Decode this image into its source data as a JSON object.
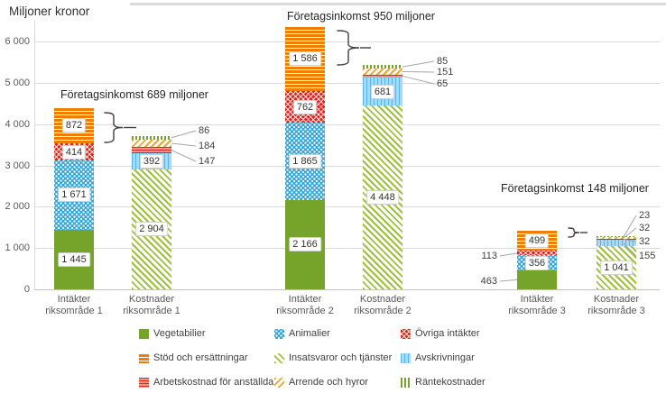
{
  "chart_data": {
    "type": "bar",
    "stacked": true,
    "title": "Miljoner kronor",
    "ylabel": "Miljoner kronor",
    "ylim": [
      0,
      6500
    ],
    "grid": true,
    "yticks": [
      "0",
      "1 000",
      "2 000",
      "3 000",
      "4 000",
      "5 000",
      "6 000"
    ],
    "annotations": [
      {
        "text": "Företagsinkomst 689 miljoner"
      },
      {
        "text": "Företagsinkomst 950 miljoner"
      },
      {
        "text": "Företagsinkomst 148 miljoner"
      }
    ],
    "groups": [
      {
        "label_lines": [
          "Intäkter",
          "riksområde 1"
        ],
        "segments": [
          {
            "series": "vegetabilier",
            "value": 1445,
            "label": "1 445",
            "placement": "inside"
          },
          {
            "series": "animalier",
            "value": 1671,
            "label": "1 671",
            "placement": "inside"
          },
          {
            "series": "ovriga-intakter",
            "value": 414,
            "label": "414",
            "placement": "inside"
          },
          {
            "series": "stod-och-ersattningar",
            "value": 872,
            "label": "872",
            "placement": "inside"
          }
        ]
      },
      {
        "label_lines": [
          "Kostnader",
          "riksområde 1"
        ],
        "segments": [
          {
            "series": "insatsvaror-och-tjanster",
            "value": 2904,
            "label": "2 904",
            "placement": "inside"
          },
          {
            "series": "avskrivningar",
            "value": 392,
            "label": "392",
            "placement": "inside"
          },
          {
            "series": "arbetskostnad-for-anstallda",
            "value": 147,
            "label": "147",
            "placement": "callout"
          },
          {
            "series": "arrende-och-hyror",
            "value": 184,
            "label": "184",
            "placement": "callout"
          },
          {
            "series": "rantekostnader",
            "value": 86,
            "label": "86",
            "placement": "callout"
          }
        ]
      },
      {
        "label_lines": [
          "Intäkter",
          "riksområde 2"
        ],
        "segments": [
          {
            "series": "vegetabilier",
            "value": 2166,
            "label": "2 166",
            "placement": "inside"
          },
          {
            "series": "animalier",
            "value": 1865,
            "label": "1 865",
            "placement": "inside"
          },
          {
            "series": "ovriga-intakter",
            "value": 762,
            "label": "762",
            "placement": "inside"
          },
          {
            "series": "stod-och-ersattningar",
            "value": 1586,
            "label": "1 586",
            "placement": "inside"
          }
        ]
      },
      {
        "label_lines": [
          "Kostnader",
          "riksområde 2"
        ],
        "segments": [
          {
            "series": "insatsvaror-och-tjanster",
            "value": 4448,
            "label": "4 448",
            "placement": "inside"
          },
          {
            "series": "avskrivningar",
            "value": 681,
            "label": "681",
            "placement": "inside"
          },
          {
            "series": "arbetskostnad-for-anstallda",
            "value": 65,
            "label": "65",
            "placement": "callout"
          },
          {
            "series": "arrende-och-hyror",
            "value": 151,
            "label": "151",
            "placement": "callout"
          },
          {
            "series": "rantekostnader",
            "value": 85,
            "label": "85",
            "placement": "callout"
          }
        ]
      },
      {
        "label_lines": [
          "Intäkter",
          "riksområde 3"
        ],
        "segments": [
          {
            "series": "vegetabilier",
            "value": 463,
            "label": "463",
            "placement": "callout"
          },
          {
            "series": "animalier",
            "value": 356,
            "label": "356",
            "placement": "inside"
          },
          {
            "series": "ovriga-intakter",
            "value": 113,
            "label": "113",
            "placement": "callout"
          },
          {
            "series": "stod-och-ersattningar",
            "value": 499,
            "label": "499",
            "placement": "inside"
          }
        ]
      },
      {
        "label_lines": [
          "Kostnader",
          "riksområde 3"
        ],
        "segments": [
          {
            "series": "insatsvaror-och-tjanster",
            "value": 1041,
            "label": "1 041",
            "placement": "inside"
          },
          {
            "series": "avskrivningar",
            "value": 155,
            "label": "155",
            "placement": "callout"
          },
          {
            "series": "arbetskostnad-for-anstallda",
            "value": 32,
            "label": "32",
            "placement": "callout"
          },
          {
            "series": "arrende-och-hyror",
            "value": 32,
            "label": "32",
            "placement": "callout"
          },
          {
            "series": "rantekostnader",
            "value": 23,
            "label": "23",
            "placement": "callout"
          }
        ]
      }
    ]
  },
  "legend": {
    "items": [
      {
        "key": "vegetabilier",
        "label": "Vegetabilier",
        "pattern": "green-solid",
        "color": "#76A42B"
      },
      {
        "key": "animalier",
        "label": "Animalier",
        "pattern": "blue-dots",
        "color": "#2EA3DC"
      },
      {
        "key": "ovriga-intakter",
        "label": "Övriga intäkter",
        "pattern": "red-crosshatch",
        "color": "#E2231A"
      },
      {
        "key": "stod-och-ersattningar",
        "label": "Stöd och ersättningar",
        "pattern": "orange-hstripes",
        "color": "#EF7D00"
      },
      {
        "key": "insatsvaror-och-tjanster",
        "label": "Insatsvaror och tjänster",
        "pattern": "green-dhatch",
        "color": "#9DC13C"
      },
      {
        "key": "avskrivningar",
        "label": "Avskrivningar",
        "pattern": "lightblue-vstripes",
        "color": "#A9D9F5"
      },
      {
        "key": "arbetskostnad-for-anstallda",
        "label": "Arbetskostnad för anställda",
        "pattern": "pink-hstripes",
        "color": "#F29392"
      },
      {
        "key": "arrende-och-hyror",
        "label": "Arrende och hyror",
        "pattern": "orange-dhatch",
        "color": "#F5A32D"
      },
      {
        "key": "rantekostnader",
        "label": "Räntekostnader",
        "pattern": "green-vstripes",
        "color": "#76A42B"
      }
    ]
  }
}
